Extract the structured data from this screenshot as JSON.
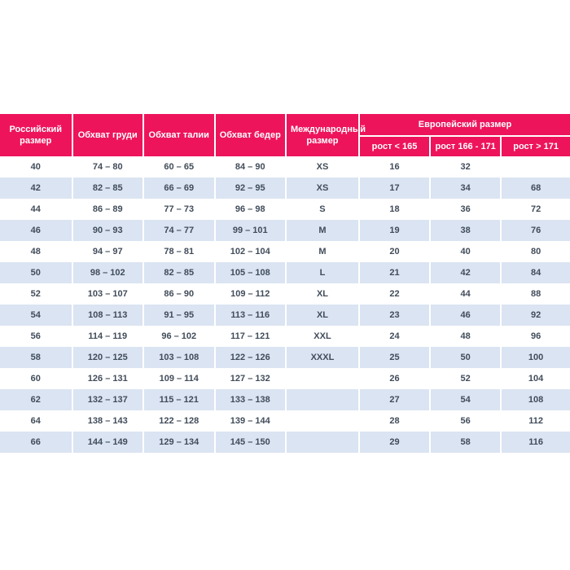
{
  "page": {
    "background_color": "#ffffff"
  },
  "table": {
    "accent_color": "#ee145c",
    "stripe_color": "#dae4f2",
    "body_text_color": "#414c5a",
    "header_text_color": "#ffffff",
    "columns": [
      {
        "label": "Российский размер"
      },
      {
        "label": "Обхват груди"
      },
      {
        "label": "Обхват талии"
      },
      {
        "label": "Обхват бедер"
      },
      {
        "label": "Международный размер"
      }
    ],
    "european_group": {
      "label": "Европейский размер",
      "subcolumns": [
        "рост < 165",
        "рост 166 - 171",
        "рост > 171"
      ]
    },
    "rows": [
      [
        "40",
        "74 – 80",
        "60 – 65",
        "84 – 90",
        "XS",
        "16",
        "32",
        ""
      ],
      [
        "42",
        "82 – 85",
        "66 – 69",
        "92 – 95",
        "XS",
        "17",
        "34",
        "68"
      ],
      [
        "44",
        "86 – 89",
        "77 – 73",
        "96 – 98",
        "S",
        "18",
        "36",
        "72"
      ],
      [
        "46",
        "90 – 93",
        "74 – 77",
        "99 – 101",
        "M",
        "19",
        "38",
        "76"
      ],
      [
        "48",
        "94 – 97",
        "78 – 81",
        "102 – 104",
        "M",
        "20",
        "40",
        "80"
      ],
      [
        "50",
        "98 – 102",
        "82 – 85",
        "105 – 108",
        "L",
        "21",
        "42",
        "84"
      ],
      [
        "52",
        "103 – 107",
        "86 – 90",
        "109 – 112",
        "XL",
        "22",
        "44",
        "88"
      ],
      [
        "54",
        "108 – 113",
        "91 – 95",
        "113 – 116",
        "XL",
        "23",
        "46",
        "92"
      ],
      [
        "56",
        "114 – 119",
        "96 – 102",
        "117 – 121",
        "XXL",
        "24",
        "48",
        "96"
      ],
      [
        "58",
        "120 – 125",
        "103 – 108",
        "122 – 126",
        "XXXL",
        "25",
        "50",
        "100"
      ],
      [
        "60",
        "126 – 131",
        "109 – 114",
        "127 – 132",
        "",
        "26",
        "52",
        "104"
      ],
      [
        "62",
        "132 – 137",
        "115 – 121",
        "133 – 138",
        "",
        "27",
        "54",
        "108"
      ],
      [
        "64",
        "138 – 143",
        "122 – 128",
        "139 – 144",
        "",
        "28",
        "56",
        "112"
      ],
      [
        "66",
        "144 – 149",
        "129 – 134",
        "145 – 150",
        "",
        "29",
        "58",
        "116"
      ]
    ]
  }
}
